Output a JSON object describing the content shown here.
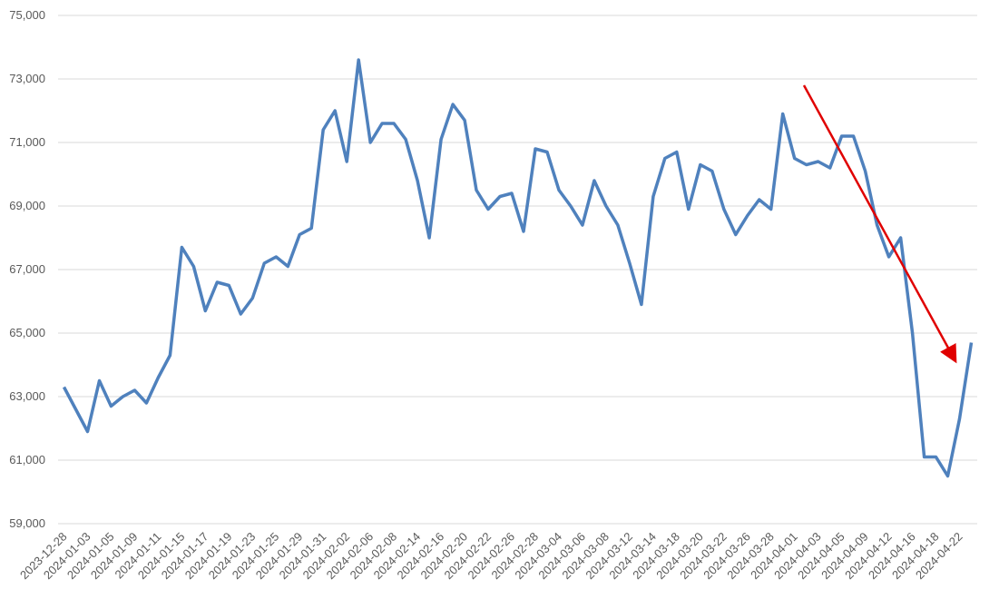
{
  "chart_data": {
    "type": "line",
    "categories": [
      "2023-12-28",
      null,
      "2024-01-03",
      null,
      "2024-01-05",
      null,
      "2024-01-09",
      null,
      "2024-01-11",
      null,
      "2024-01-15",
      null,
      "2024-01-17",
      null,
      "2024-01-19",
      null,
      "2024-01-23",
      null,
      "2024-01-25",
      null,
      "2024-01-29",
      null,
      "2024-01-31",
      null,
      "2024-02-02",
      null,
      "2024-02-06",
      null,
      "2024-02-08",
      null,
      "2024-02-14",
      null,
      "2024-02-16",
      null,
      "2024-02-20",
      null,
      "2024-02-22",
      null,
      "2024-02-26",
      null,
      "2024-02-28",
      null,
      "2024-03-04",
      null,
      "2024-03-06",
      null,
      "2024-03-08",
      null,
      "2024-03-12",
      null,
      "2024-03-14",
      null,
      "2024-03-18",
      null,
      "2024-03-20",
      null,
      "2024-03-22",
      null,
      "2024-03-26",
      null,
      "2024-03-28",
      null,
      "2024-04-01",
      null,
      "2024-04-03",
      null,
      "2024-04-05",
      null,
      "2024-04-09",
      null,
      "2024-04-12",
      null,
      "2024-04-16",
      null,
      "2024-04-18",
      null,
      "2024-04-22",
      null
    ],
    "values": [
      63300,
      62600,
      61900,
      63500,
      62700,
      63000,
      63200,
      62800,
      63600,
      64300,
      67700,
      67100,
      65700,
      66600,
      66500,
      65600,
      66100,
      67200,
      67400,
      67100,
      68100,
      68300,
      71400,
      72000,
      70400,
      73600,
      71000,
      71600,
      71600,
      71100,
      69800,
      68000,
      71100,
      72200,
      71700,
      69500,
      68900,
      69300,
      69400,
      68200,
      70800,
      70700,
      69500,
      69000,
      68400,
      69800,
      69000,
      68400,
      67200,
      65900,
      69300,
      70500,
      70700,
      68900,
      70300,
      70100,
      68900,
      68100,
      68700,
      69200,
      68900,
      71900,
      70500,
      70300,
      70400,
      70200,
      71200,
      71200,
      70100,
      68400,
      67400,
      68000,
      65000,
      61100,
      61100,
      60500,
      62300,
      64700
    ],
    "color": "#4f81bd",
    "ylim": [
      59000,
      75000
    ],
    "yticks": [
      {
        "value": 59000,
        "label": "59,000"
      },
      {
        "value": 61000,
        "label": "61,000"
      },
      {
        "value": 63000,
        "label": "63,000"
      },
      {
        "value": 65000,
        "label": "65,000"
      },
      {
        "value": 67000,
        "label": "67,000"
      },
      {
        "value": 69000,
        "label": "69,000"
      },
      {
        "value": 71000,
        "label": "71,000"
      },
      {
        "value": 73000,
        "label": "73,000"
      },
      {
        "value": 75000,
        "label": "75,000"
      }
    ],
    "grid": true
  }
}
